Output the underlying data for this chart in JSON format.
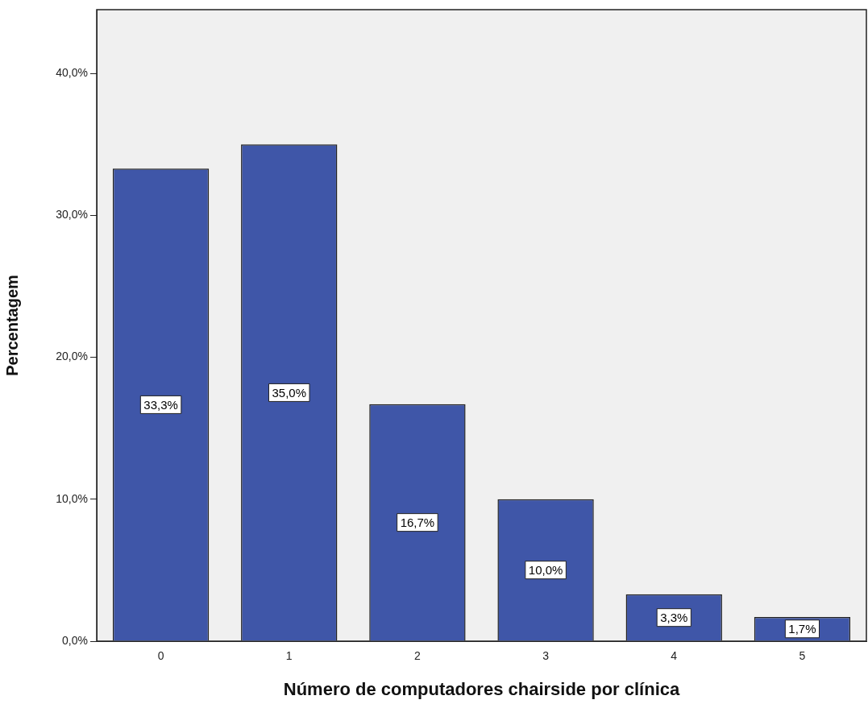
{
  "chart_data": {
    "type": "bar",
    "xlabel": "Número de computadores chairside por clínica",
    "ylabel": "Percentagem",
    "categories": [
      "0",
      "1",
      "2",
      "3",
      "4",
      "5"
    ],
    "values": [
      33.3,
      35.0,
      16.7,
      10.0,
      3.3,
      1.7
    ],
    "value_labels": [
      "33,3%",
      "35,0%",
      "16,7%",
      "10,0%",
      "3,3%",
      "1,7%"
    ],
    "color": "#3f56a8",
    "ylim": [
      0,
      44.5
    ],
    "yticks": [
      {
        "value": 0,
        "label": "0,0%"
      },
      {
        "value": 10,
        "label": "10,0%"
      },
      {
        "value": 20,
        "label": "20,0%"
      },
      {
        "value": 30,
        "label": "30,0%"
      },
      {
        "value": 40,
        "label": "40,0%"
      }
    ],
    "grid": false,
    "legend": false
  }
}
